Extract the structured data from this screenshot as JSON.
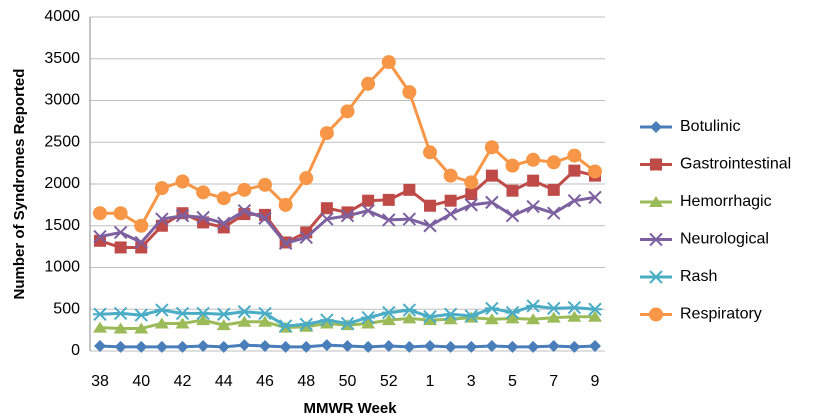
{
  "chart_data": {
    "type": "line",
    "xlabel": "MMWR Week",
    "ylabel": "Number of Syndromes Reported",
    "categories": [
      "38",
      null,
      "40",
      null,
      "42",
      null,
      "44",
      null,
      "46",
      null,
      "48",
      null,
      "50",
      null,
      "52",
      null,
      "1",
      null,
      "3",
      null,
      "5",
      null,
      "7",
      null,
      "9"
    ],
    "ylim": [
      0,
      4000
    ],
    "yticks": [
      0,
      500,
      1000,
      1500,
      2000,
      2500,
      3000,
      3500,
      4000
    ],
    "grid": true,
    "legend": "right",
    "series": [
      {
        "name": "Botulinic",
        "color": "#4a7ebb",
        "marker": "diamond",
        "values": [
          60,
          50,
          50,
          50,
          50,
          60,
          50,
          70,
          60,
          50,
          50,
          70,
          60,
          50,
          60,
          50,
          60,
          50,
          50,
          60,
          50,
          50,
          60,
          50,
          60
        ]
      },
      {
        "name": "Gastrointestinal",
        "color": "#be4b48",
        "marker": "square",
        "values": [
          1320,
          1240,
          1240,
          1500,
          1650,
          1540,
          1480,
          1640,
          1630,
          1300,
          1420,
          1710,
          1660,
          1800,
          1810,
          1930,
          1740,
          1800,
          1880,
          2100,
          1920,
          2040,
          1930,
          2160,
          2100
        ]
      },
      {
        "name": "Hemorrhagic",
        "color": "#9bbb59",
        "marker": "triangle",
        "values": [
          280,
          270,
          270,
          330,
          330,
          370,
          310,
          350,
          350,
          280,
          290,
          330,
          310,
          330,
          370,
          390,
          370,
          380,
          400,
          380,
          390,
          380,
          400,
          410,
          410
        ]
      },
      {
        "name": "Neurological",
        "color": "#7d60a0",
        "marker": "x",
        "values": [
          1370,
          1420,
          1300,
          1580,
          1620,
          1600,
          1530,
          1680,
          1590,
          1290,
          1360,
          1580,
          1620,
          1680,
          1570,
          1580,
          1500,
          1640,
          1750,
          1780,
          1620,
          1730,
          1650,
          1800,
          1840
        ]
      },
      {
        "name": "Rash",
        "color": "#4bacc6",
        "marker": "star",
        "values": [
          440,
          450,
          430,
          490,
          450,
          450,
          440,
          470,
          450,
          300,
          320,
          370,
          330,
          400,
          460,
          490,
          410,
          440,
          420,
          510,
          460,
          540,
          510,
          520,
          500
        ]
      },
      {
        "name": "Respiratory",
        "color": "#f79646",
        "marker": "circle",
        "values": [
          1650,
          1650,
          1500,
          1950,
          2030,
          1900,
          1830,
          1930,
          1990,
          1750,
          2070,
          2610,
          2870,
          3200,
          3460,
          3100,
          2380,
          2100,
          2020,
          2440,
          2220,
          2290,
          2260,
          2340,
          2150
        ]
      }
    ]
  }
}
